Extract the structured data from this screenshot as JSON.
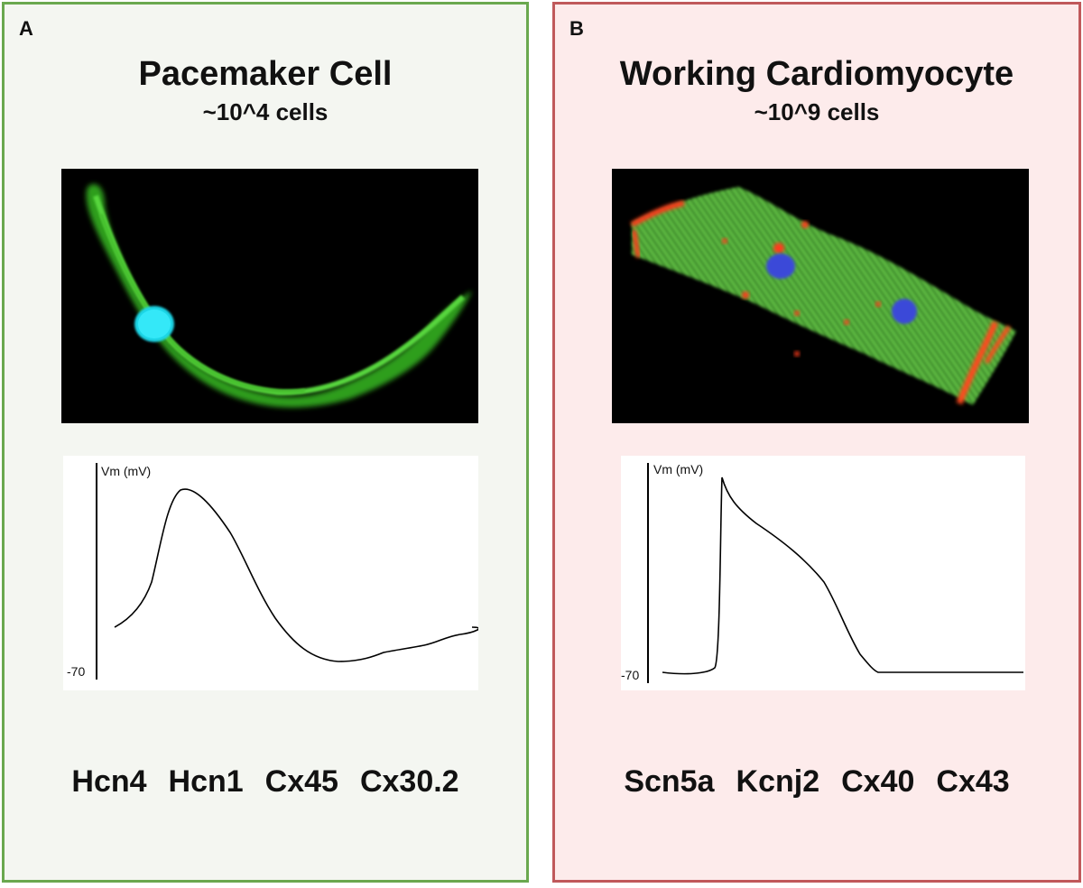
{
  "panel_a": {
    "letter": "A",
    "title": "Pacemaker Cell",
    "subtitle": "~10^4 cells",
    "trace": {
      "ylabel": "Vm (mV)",
      "baseline_label": "-70"
    },
    "genes": [
      "Hcn4",
      "Hcn1",
      "Cx45",
      "Cx30.2"
    ],
    "border_color": "#6aa84f"
  },
  "panel_b": {
    "letter": "B",
    "title": "Working Cardiomyocyte",
    "subtitle": "~10^9 cells",
    "trace": {
      "ylabel": "Vm (mV)",
      "baseline_label": "-70"
    },
    "genes": [
      "Scn5a",
      "Kcnj2",
      "Cx40",
      "Cx43"
    ],
    "border_color": "#c0595b"
  }
}
